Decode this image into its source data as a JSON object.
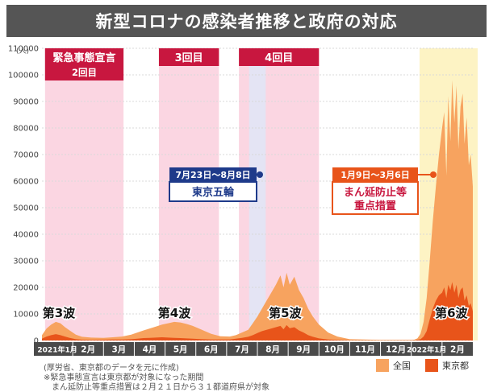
{
  "colors": {
    "accent": "#c8173f",
    "emergency_band": "#fbd6e2",
    "olympics_band": "#e4e4f4",
    "semi_band": "#fdf3c4",
    "nationwide": "#f7a35f",
    "tokyo": "#e8541a",
    "olympics_marker": "#1e3a8a",
    "semi_marker": "#e8541a"
  },
  "chart_data": {
    "type": "area",
    "title": "新型コロナの感染者推移と政府の対応",
    "ylabel": "(人)",
    "xlabel": "",
    "ylim": [
      0,
      110000
    ],
    "xlim": [
      0,
      14
    ],
    "y_ticks": [
      0,
      10000,
      20000,
      30000,
      40000,
      50000,
      60000,
      70000,
      80000,
      90000,
      100000,
      110000
    ],
    "y_tick_labels": [
      "0",
      "10000",
      "20000",
      "30000",
      "40000",
      "50000",
      "60000",
      "70000",
      "80000",
      "90000",
      "100000",
      "110000"
    ],
    "x_month_labels": [
      "2021年1月",
      "2月",
      "3月",
      "4月",
      "5月",
      "6月",
      "7月",
      "8月",
      "9月",
      "10月",
      "11月",
      "12月",
      "2022年1月",
      "2月"
    ],
    "x_units": "months since 2021-01",
    "grid": true,
    "legend_position": "bottom-right",
    "series": [
      {
        "name": "全国",
        "x": [
          0,
          0.15,
          0.3,
          0.45,
          0.6,
          0.75,
          0.9,
          1.1,
          1.3,
          1.6,
          2,
          2.3,
          2.6,
          2.9,
          3.1,
          3.3,
          3.5,
          3.7,
          3.9,
          4.1,
          4.3,
          4.5,
          4.7,
          4.9,
          5.2,
          5.5,
          5.8,
          6.1,
          6.3,
          6.5,
          6.7,
          6.85,
          7,
          7.15,
          7.3,
          7.45,
          7.6,
          7.75,
          7.85,
          7.95,
          8.05,
          8.2,
          8.35,
          8.5,
          8.65,
          8.8,
          9,
          9.3,
          9.6,
          10,
          11,
          12,
          12.1,
          12.2,
          12.3,
          12.4,
          12.5,
          12.6,
          12.7,
          12.8,
          12.9,
          13,
          13.07,
          13.14,
          13.2,
          13.27,
          13.33,
          13.4,
          13.47,
          13.53,
          13.6,
          13.67,
          13.73,
          13.8,
          13.87,
          13.93,
          14
        ],
        "values": [
          2000,
          4500,
          6000,
          7000,
          6500,
          5000,
          3800,
          2200,
          1400,
          1100,
          1000,
          1200,
          1500,
          2200,
          3000,
          3800,
          4500,
          5200,
          6000,
          6500,
          7000,
          6800,
          6200,
          5500,
          4000,
          2500,
          1600,
          1500,
          2000,
          3000,
          4000,
          6500,
          9000,
          12000,
          15000,
          18000,
          21000,
          24500,
          20000,
          25500,
          21000,
          24000,
          19000,
          16000,
          12000,
          9000,
          6000,
          3000,
          1500,
          500,
          200,
          200,
          300,
          800,
          2500,
          7000,
          16000,
          30000,
          45000,
          58000,
          70000,
          80000,
          86000,
          62000,
          92000,
          75000,
          98000,
          82000,
          96000,
          72000,
          88000,
          93000,
          74000,
          84000,
          66000,
          70000,
          58000
        ]
      },
      {
        "name": "東京都",
        "x": [
          0,
          0.15,
          0.3,
          0.45,
          0.6,
          0.75,
          0.9,
          1.1,
          1.3,
          1.6,
          2,
          2.3,
          2.6,
          2.9,
          3.1,
          3.3,
          3.5,
          3.7,
          3.9,
          4.1,
          4.3,
          4.5,
          4.7,
          4.9,
          5.2,
          5.5,
          5.8,
          6.1,
          6.3,
          6.5,
          6.7,
          6.85,
          7,
          7.15,
          7.3,
          7.45,
          7.6,
          7.75,
          7.85,
          7.95,
          8.05,
          8.2,
          8.35,
          8.5,
          8.65,
          8.8,
          9,
          9.3,
          9.6,
          10,
          11,
          12,
          12.1,
          12.2,
          12.3,
          12.4,
          12.5,
          12.6,
          12.7,
          12.8,
          12.9,
          13,
          13.07,
          13.14,
          13.2,
          13.27,
          13.33,
          13.4,
          13.47,
          13.53,
          13.6,
          13.67,
          13.73,
          13.8,
          13.87,
          13.93,
          14
        ],
        "values": [
          700,
          1500,
          2000,
          2400,
          2000,
          1500,
          1000,
          500,
          300,
          250,
          300,
          350,
          400,
          500,
          700,
          900,
          1000,
          1100,
          1200,
          1100,
          1000,
          900,
          800,
          700,
          500,
          400,
          350,
          400,
          700,
          1000,
          1400,
          2000,
          2800,
          3500,
          4000,
          4500,
          5000,
          5500,
          4200,
          5800,
          4600,
          5000,
          3800,
          3000,
          2000,
          1400,
          800,
          400,
          200,
          60,
          30,
          60,
          80,
          200,
          500,
          1500,
          3500,
          8000,
          12000,
          15000,
          17000,
          18000,
          20000,
          16000,
          21000,
          19000,
          22000,
          18000,
          21000,
          16000,
          19000,
          20000,
          15000,
          17000,
          13000,
          14000,
          11000
        ]
      }
    ],
    "periods": [
      {
        "label": "緊急事態宣言",
        "sublabel": "2回目",
        "start": 0.1,
        "end": 2.65
      },
      {
        "label": "3回目",
        "start": 3.8,
        "end": 5.75
      },
      {
        "label": "4回目",
        "start": 6.4,
        "end": 9.0
      }
    ],
    "olympics": {
      "label": "7月23日〜8月8日",
      "name": "東京五輪",
      "start": 6.73,
      "end": 7.27
    },
    "semi_emergency": {
      "label": "1月9日〜3月6日",
      "name_line1": "まん延防止等",
      "name_line2": "重点措置",
      "start": 12.27,
      "end": 14.0
    },
    "annotations": [
      {
        "text": "第3波",
        "x": 0.55,
        "y": 7000
      },
      {
        "text": "第4波",
        "x": 4.3,
        "y": 7000
      },
      {
        "text": "第5波",
        "x": 7.9,
        "y": 7000
      },
      {
        "text": "第6波",
        "x": 13.3,
        "y": 7000
      }
    ]
  },
  "source_note": "(厚労省、東京都のデータを元に作成)",
  "footnote_1": "※緊急事態宣言は東京都が対象になった期間",
  "footnote_2": "　まん延防止等重点措置は２月２１日から３１都道府県が対象",
  "legend": {
    "nationwide": "全国",
    "tokyo": "東京都"
  }
}
